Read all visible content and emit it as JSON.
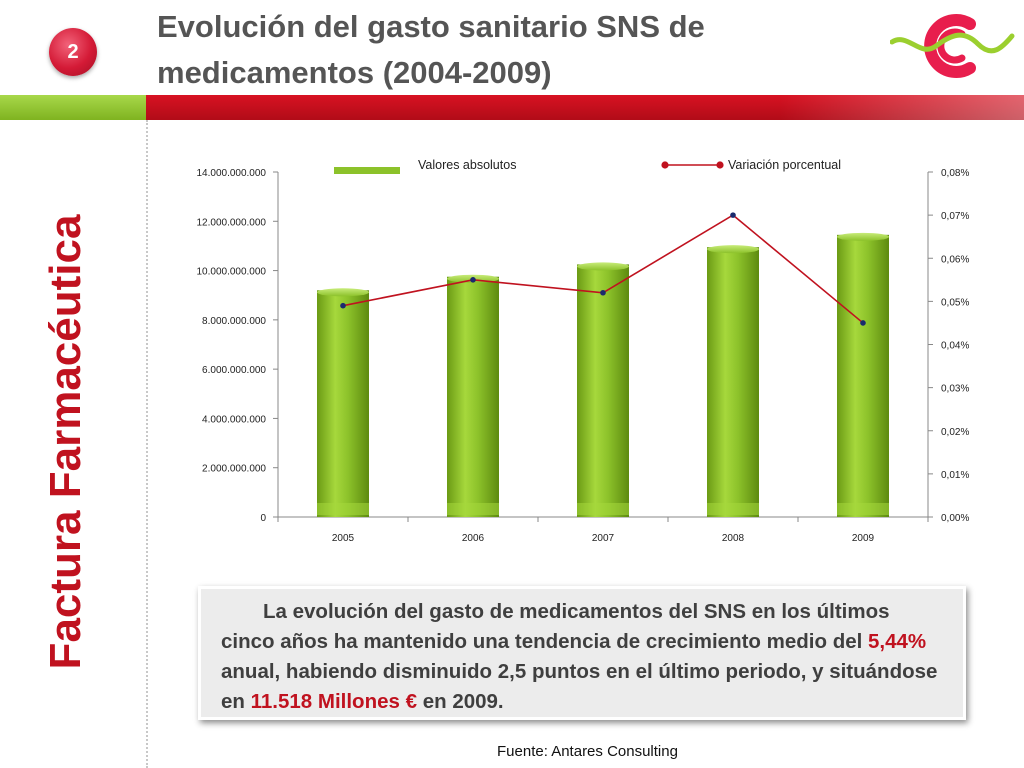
{
  "header": {
    "badge_number": "2",
    "title_line1": "Evolución del gasto sanitario SNS de",
    "title_line2": "medicamentos (2004-2009)",
    "side_title": "Factura Farmacéutica"
  },
  "colors": {
    "accent_red": "#c0121f",
    "accent_green": "#8cc22a",
    "line_red": "#c0121f",
    "marker_navy": "#1a2a6e"
  },
  "chart_data": {
    "type": "bar",
    "categories": [
      "2005",
      "2006",
      "2007",
      "2008",
      "2009"
    ],
    "series": [
      {
        "name": "Valores absolutos",
        "type": "bar",
        "axis": "left",
        "values": [
          9200000000,
          9750000000,
          10250000000,
          10950000000,
          11450000000
        ]
      },
      {
        "name": "Variación porcentual",
        "type": "line",
        "axis": "right",
        "values": [
          0.049,
          0.055,
          0.052,
          0.07,
          0.045
        ]
      }
    ],
    "y_left": {
      "min": 0,
      "max": 14000000000,
      "ticks": [
        "0",
        "2.000.000.000",
        "4.000.000.000",
        "6.000.000.000",
        "8.000.000.000",
        "10.000.000.000",
        "12.000.000.000",
        "14.000.000.000"
      ]
    },
    "y_right": {
      "min": 0,
      "max": 0.08,
      "ticks": [
        "0,00%",
        "0,01%",
        "0,02%",
        "0,03%",
        "0,04%",
        "0,05%",
        "0,06%",
        "0,07%",
        "0,08%"
      ]
    },
    "legend_position": "top",
    "grid": false
  },
  "summary": {
    "part1": "La evolución del gasto de medicamentos del SNS en los últimos cinco años ha mantenido una tendencia de crecimiento medio del ",
    "growth": "5,44%",
    "part2": " anual, habiendo disminuido 2,5 puntos en el último periodo, y situándose en ",
    "amount": "11.518 Millones €",
    "part3": "  en 2009."
  },
  "source": "Fuente: Antares Consulting"
}
